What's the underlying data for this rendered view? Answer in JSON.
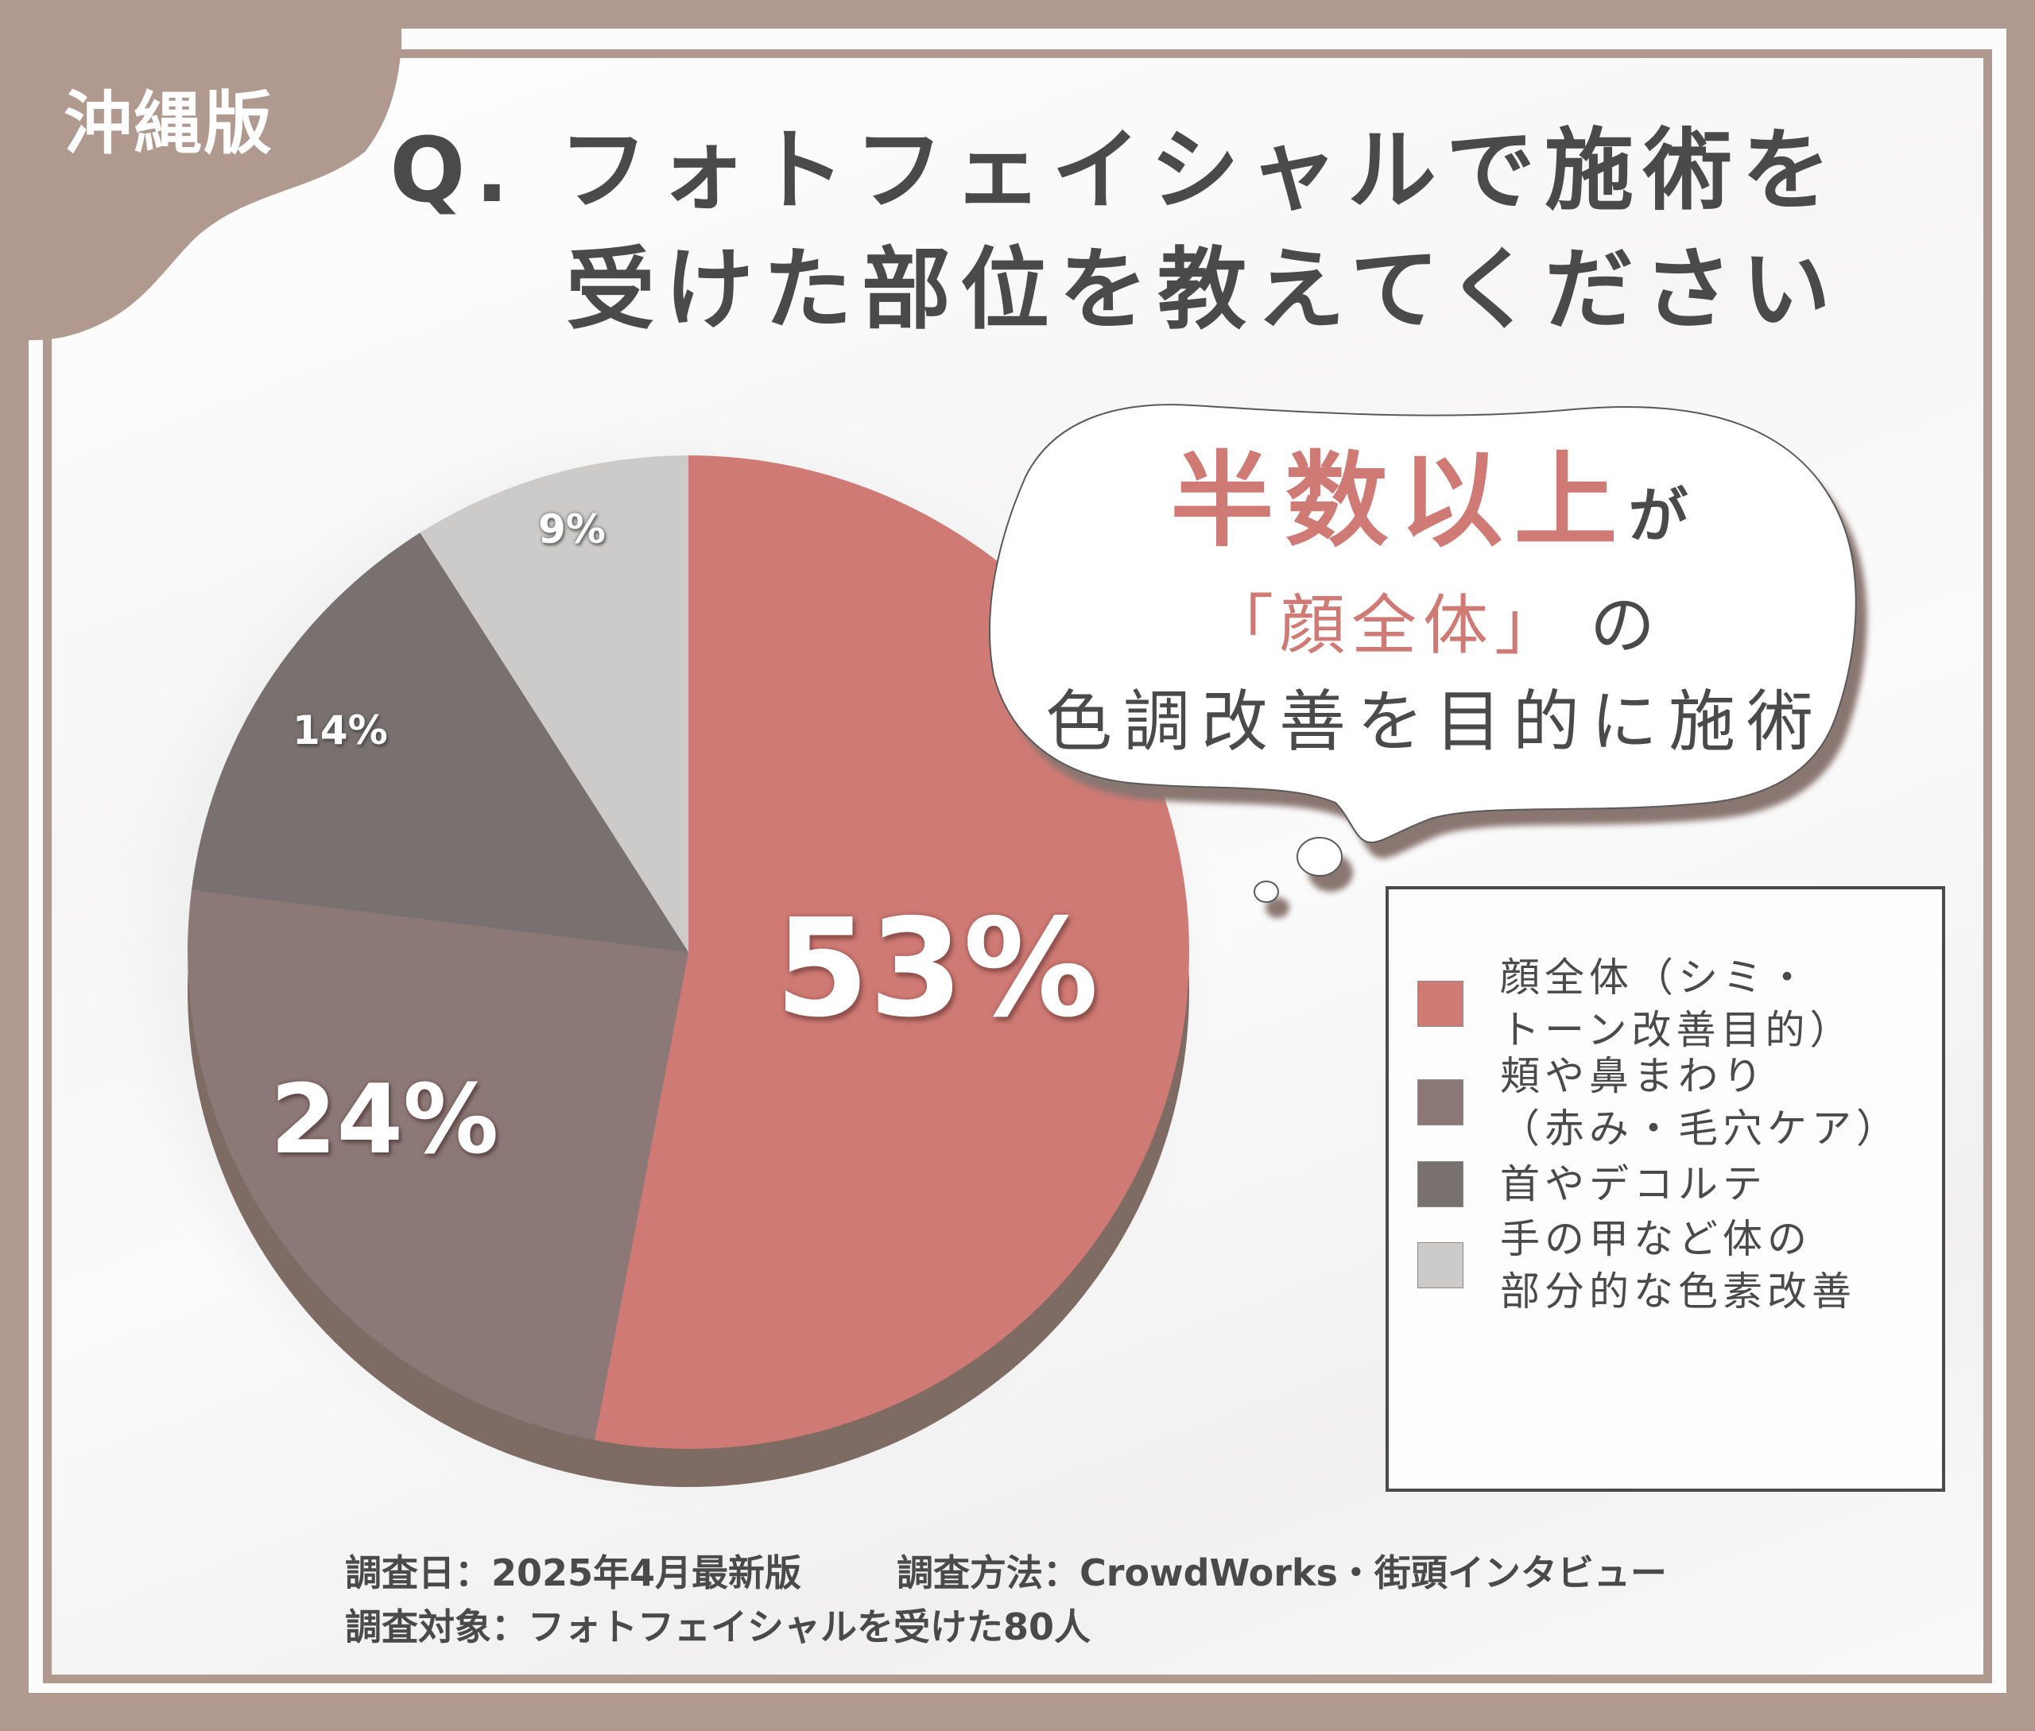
{
  "region_tag": "沖縄版",
  "title": {
    "line1": "Q. フォトフェイシャルで施術を",
    "line2": "受けた部位を教えてください"
  },
  "callout": {
    "highlight": "半数以上",
    "particle1": "が",
    "quote": "「顔全体」",
    "particle2": "の",
    "line3": "色調改善を目的に施術"
  },
  "colors": {
    "frame": "#b0998f",
    "slice_face": "#cf7a74",
    "slice_cheek": "#8c7876",
    "slice_neck": "#78716f",
    "slice_body": "#cccbca",
    "pie_depth": "#7d6b64",
    "text": "#4a4a4a"
  },
  "labels": {
    "face": "53%",
    "cheek": "24%",
    "neck": "14%",
    "body": "9%"
  },
  "legend": [
    {
      "label": "顔全体（シミ・\nトーン改善目的）",
      "color": "#cf7a74"
    },
    {
      "label": "頬や鼻まわり\n（赤み・毛穴ケア）",
      "color": "#8c7876"
    },
    {
      "label": "首やデコルテ",
      "color": "#78716f"
    },
    {
      "label": "手の甲など体の\n部分的な色素改善",
      "color": "#cccbca"
    }
  ],
  "footer": {
    "date": "調査日：2025年4月最新版",
    "method": "調査方法：CrowdWorks・街頭インタビュー",
    "target": "調査対象：フォトフェイシャルを受けた80人"
  },
  "chart_data": {
    "type": "pie",
    "title": "Q. フォトフェイシャルで施術を受けた部位を教えてください",
    "categories": [
      "顔全体（シミ・トーン改善目的）",
      "頬や鼻まわり（赤み・毛穴ケア）",
      "首やデコルテ",
      "手の甲など体の部分的な色素改善"
    ],
    "values": [
      53,
      24,
      14,
      9
    ],
    "unit": "%",
    "colors": [
      "#cf7a74",
      "#8c7876",
      "#78716f",
      "#cccbca"
    ],
    "start_angle": "12 o'clock, clockwise",
    "legend_position": "right",
    "annotations": [
      "半数以上が「顔全体」の色調改善を目的に施術"
    ],
    "sample_size": 80
  }
}
